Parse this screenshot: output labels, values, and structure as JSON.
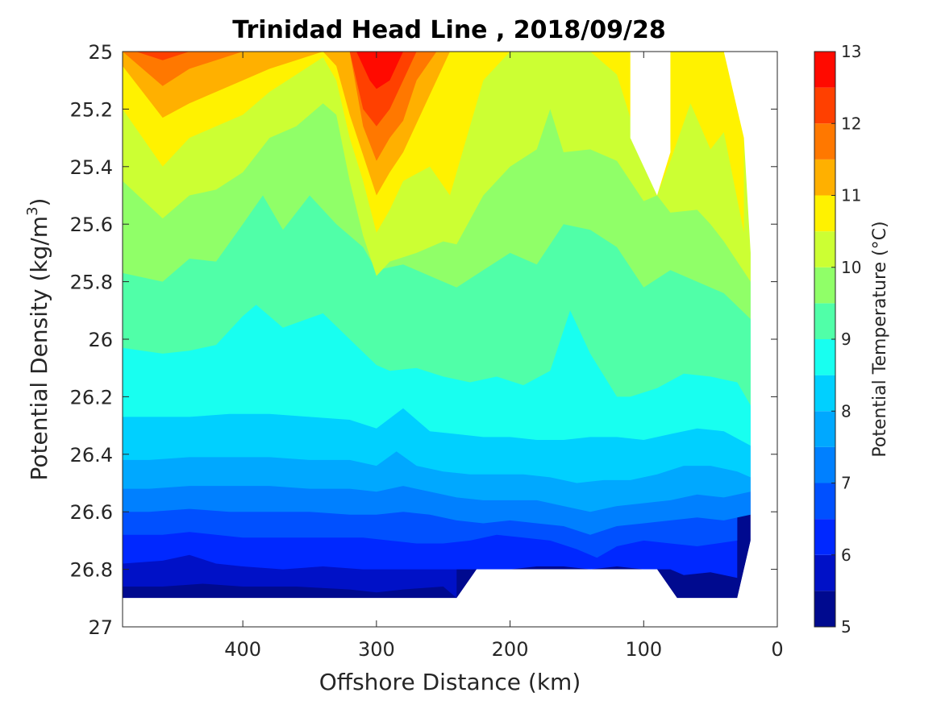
{
  "chart_data": {
    "type": "heatmap",
    "subtype": "filled-contour",
    "title": "Trinidad Head Line , 2018/09/28",
    "xlabel": "Offshore Distance (km)",
    "ylabel": "Potential Density (kg/m",
    "ylabel_sup": "3",
    "ylabel_close": ")",
    "xlim": [
      490,
      0
    ],
    "ylim": [
      25,
      27
    ],
    "x_reversed": true,
    "y_reversed": true,
    "x_ticks": [
      "400",
      "300",
      "200",
      "100",
      "0"
    ],
    "x_tick_values": [
      400,
      300,
      200,
      100,
      0
    ],
    "y_ticks": [
      "25",
      "25.2",
      "25.4",
      "25.6",
      "25.8",
      "26",
      "26.2",
      "26.4",
      "26.6",
      "26.8",
      "27"
    ],
    "y_tick_values": [
      25,
      25.2,
      25.4,
      25.6,
      25.8,
      26,
      26.2,
      26.4,
      26.6,
      26.8,
      27
    ],
    "colorbar": {
      "label": "Potential Temperature (°C)",
      "range": [
        5,
        13
      ],
      "levels": [
        5,
        5.5,
        6,
        6.5,
        7,
        7.5,
        8,
        8.5,
        9,
        9.5,
        10,
        10.5,
        11,
        11.5,
        12,
        12.5,
        13
      ],
      "tick_labels": [
        "5",
        "6",
        "7",
        "8",
        "9",
        "10",
        "11",
        "12",
        "13"
      ],
      "tick_values": [
        5,
        6,
        7,
        8,
        9,
        10,
        11,
        12,
        13
      ],
      "colors": [
        "#000a8f",
        "#0011c7",
        "#0028ff",
        "#0050ff",
        "#0080ff",
        "#00a8ff",
        "#00d0ff",
        "#18fff0",
        "#50ffa8",
        "#90ff68",
        "#ccff33",
        "#fff200",
        "#ffb000",
        "#ff7800",
        "#ff4000",
        "#ff0a00",
        "#aa0000"
      ]
    },
    "grid": false,
    "boundaries": [
      {
        "name": "5.5",
        "x": [
          490,
          460,
          430,
          400,
          360,
          320,
          300,
          280,
          250,
          240
        ],
        "y": [
          26.86,
          26.86,
          26.85,
          26.86,
          26.86,
          26.87,
          26.88,
          26.87,
          26.86,
          26.9
        ]
      },
      {
        "name": "6",
        "x": [
          490,
          460,
          440,
          420,
          400,
          370,
          340,
          310,
          290,
          270,
          250,
          230,
          200,
          180,
          160,
          140,
          120,
          100,
          80,
          70,
          50,
          30
        ],
        "y": [
          26.78,
          26.77,
          26.75,
          26.78,
          26.79,
          26.8,
          26.79,
          26.8,
          26.8,
          26.8,
          26.8,
          26.8,
          26.8,
          26.79,
          26.79,
          26.8,
          26.79,
          26.8,
          26.8,
          26.82,
          26.81,
          26.83
        ]
      },
      {
        "name": "6.5",
        "x": [
          490,
          460,
          440,
          420,
          400,
          370,
          340,
          310,
          290,
          270,
          250,
          230,
          210,
          190,
          170,
          150,
          135,
          120,
          100,
          80,
          60,
          45,
          30
        ],
        "y": [
          26.68,
          26.68,
          26.67,
          26.68,
          26.69,
          26.69,
          26.69,
          26.69,
          26.7,
          26.71,
          26.71,
          26.7,
          26.68,
          26.69,
          26.7,
          26.73,
          26.76,
          26.72,
          26.7,
          26.71,
          26.72,
          26.71,
          26.7
        ]
      },
      {
        "name": "7",
        "x": [
          490,
          470,
          440,
          410,
          380,
          350,
          320,
          300,
          280,
          260,
          240,
          220,
          200,
          180,
          160,
          140,
          120,
          100,
          80,
          60,
          40,
          20
        ],
        "y": [
          26.6,
          26.6,
          26.59,
          26.6,
          26.6,
          26.6,
          26.61,
          26.61,
          26.6,
          26.61,
          26.63,
          26.64,
          26.63,
          26.64,
          26.65,
          26.68,
          26.65,
          26.64,
          26.63,
          26.62,
          26.63,
          26.61
        ]
      },
      {
        "name": "7.5",
        "x": [
          490,
          470,
          440,
          410,
          380,
          350,
          320,
          300,
          280,
          260,
          240,
          220,
          200,
          180,
          160,
          140,
          120,
          100,
          80,
          60,
          40,
          20
        ],
        "y": [
          26.52,
          26.52,
          26.51,
          26.51,
          26.51,
          26.52,
          26.52,
          26.53,
          26.51,
          26.53,
          26.55,
          26.56,
          26.56,
          26.56,
          26.58,
          26.6,
          26.58,
          26.57,
          26.56,
          26.54,
          26.55,
          26.53
        ]
      },
      {
        "name": "8",
        "x": [
          490,
          470,
          440,
          410,
          380,
          350,
          320,
          300,
          285,
          270,
          250,
          230,
          210,
          190,
          170,
          150,
          130,
          110,
          90,
          70,
          50,
          30,
          20
        ],
        "y": [
          26.42,
          26.42,
          26.41,
          26.41,
          26.41,
          26.42,
          26.42,
          26.44,
          26.39,
          26.44,
          26.46,
          26.47,
          26.47,
          26.47,
          26.48,
          26.5,
          26.49,
          26.49,
          26.47,
          26.44,
          26.44,
          26.46,
          26.48
        ]
      },
      {
        "name": "8.5",
        "x": [
          490,
          470,
          440,
          410,
          380,
          350,
          320,
          300,
          280,
          260,
          240,
          220,
          200,
          180,
          160,
          140,
          120,
          100,
          80,
          60,
          40,
          20
        ],
        "y": [
          26.27,
          26.27,
          26.27,
          26.26,
          26.26,
          26.27,
          26.28,
          26.31,
          26.24,
          26.32,
          26.33,
          26.34,
          26.34,
          26.35,
          26.35,
          26.34,
          26.34,
          26.35,
          26.33,
          26.31,
          26.32,
          26.37
        ]
      },
      {
        "name": "9",
        "x": [
          490,
          460,
          440,
          420,
          400,
          390,
          370,
          340,
          320,
          300,
          290,
          270,
          250,
          230,
          210,
          190,
          170,
          155,
          140,
          120,
          110,
          90,
          70,
          50,
          30,
          20
        ],
        "y": [
          26.03,
          26.05,
          26.04,
          26.02,
          25.92,
          25.88,
          25.96,
          25.91,
          26.0,
          26.09,
          26.11,
          26.1,
          26.13,
          26.15,
          26.13,
          26.16,
          26.11,
          25.9,
          26.05,
          26.2,
          26.2,
          26.17,
          26.12,
          26.13,
          26.15,
          26.23
        ]
      },
      {
        "name": "9.5",
        "x": [
          490,
          460,
          440,
          420,
          400,
          385,
          370,
          350,
          330,
          310,
          300,
          280,
          260,
          240,
          220,
          200,
          180,
          160,
          140,
          120,
          100,
          80,
          60,
          40,
          20
        ],
        "y": [
          25.77,
          25.8,
          25.72,
          25.73,
          25.6,
          25.5,
          25.62,
          25.5,
          25.6,
          25.68,
          25.76,
          25.74,
          25.78,
          25.82,
          25.76,
          25.7,
          25.74,
          25.6,
          25.62,
          25.68,
          25.82,
          25.76,
          25.8,
          25.84,
          25.93
        ]
      },
      {
        "name": "10",
        "x": [
          490,
          460,
          440,
          420,
          400,
          380,
          360,
          340,
          330,
          320,
          310,
          300,
          290,
          270,
          250,
          240,
          220,
          200,
          180,
          170,
          160,
          140,
          120,
          100,
          90,
          80,
          60,
          50,
          40,
          20
        ],
        "y": [
          25.45,
          25.58,
          25.5,
          25.48,
          25.42,
          25.3,
          25.26,
          25.18,
          25.22,
          25.45,
          25.64,
          25.78,
          25.73,
          25.7,
          25.66,
          25.67,
          25.5,
          25.4,
          25.34,
          25.2,
          25.35,
          25.34,
          25.38,
          25.52,
          25.5,
          25.56,
          25.55,
          25.6,
          25.66,
          25.8
        ]
      },
      {
        "name": "10.5",
        "x": [
          490,
          460,
          440,
          420,
          400,
          380,
          360,
          340,
          330,
          320,
          310,
          300,
          290,
          280,
          260,
          245,
          220,
          200,
          180,
          170,
          160,
          140,
          120,
          100,
          90,
          80,
          65,
          50,
          40,
          25
        ],
        "y": [
          25.2,
          25.4,
          25.3,
          25.26,
          25.22,
          25.14,
          25.08,
          25.02,
          25.1,
          25.3,
          25.45,
          25.63,
          25.55,
          25.45,
          25.4,
          25.5,
          25.1,
          25.0,
          25.0,
          25.0,
          25.0,
          25.0,
          25.08,
          25.38,
          25.5,
          25.38,
          25.18,
          25.34,
          25.28,
          25.63
        ]
      },
      {
        "name": "11",
        "x": [
          490,
          460,
          440,
          420,
          400,
          380,
          360,
          340,
          330,
          320,
          310,
          300,
          290,
          280,
          260,
          245
        ],
        "y": [
          25.05,
          25.23,
          25.18,
          25.14,
          25.1,
          25.06,
          25.03,
          25.0,
          25.05,
          25.22,
          25.36,
          25.5,
          25.42,
          25.35,
          25.15,
          25.0
        ]
      },
      {
        "name": "11.5",
        "x": [
          490,
          460,
          440,
          420,
          400,
          380,
          360,
          340,
          320,
          310,
          300,
          290,
          280,
          270,
          255
        ],
        "y": [
          25.0,
          25.12,
          25.06,
          25.03,
          25.0,
          25.0,
          25.0,
          25.0,
          25.0,
          25.26,
          25.38,
          25.3,
          25.24,
          25.1,
          25.0
        ]
      },
      {
        "name": "12",
        "x": [
          480,
          460,
          440,
          420,
          320,
          310,
          300,
          290,
          280,
          270
        ],
        "y": [
          25.0,
          25.03,
          25.0,
          25.0,
          25.0,
          25.2,
          25.26,
          25.2,
          25.1,
          25.0
        ]
      },
      {
        "name": "12.5",
        "x": [
          315,
          305,
          300,
          290,
          280
        ],
        "y": [
          25.0,
          25.1,
          25.13,
          25.1,
          25.0
        ]
      }
    ],
    "data_region_outline": {
      "x": [
        490,
        240,
        225,
        90,
        75,
        30,
        20,
        20,
        25,
        40,
        50,
        60,
        110,
        100,
        90,
        80,
        75,
        70,
        60,
        50,
        40,
        30,
        490
      ],
      "y": [
        26.9,
        26.9,
        26.8,
        26.8,
        26.9,
        26.9,
        26.7,
        25.7,
        25.3,
        25.0,
        25.0,
        25.0,
        25.0,
        25.0,
        25.5,
        25.4,
        25.0,
        25.0,
        25.0,
        25.0,
        25.0,
        25.0,
        25.0
      ],
      "no_data_gaps": [
        {
          "x": [
            240,
            225,
            90,
            75
          ],
          "y": [
            26.9,
            26.8,
            26.8,
            26.9
          ]
        },
        {
          "x": [
            110,
            110,
            90,
            80,
            80
          ],
          "y": [
            25.0,
            25.3,
            25.5,
            25.35,
            25.0
          ]
        }
      ]
    }
  }
}
